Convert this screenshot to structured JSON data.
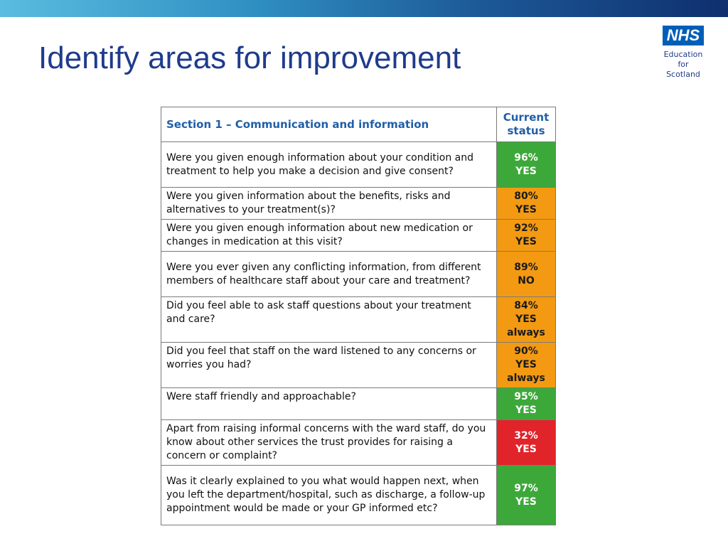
{
  "slide": {
    "title": "Identify areas for improvement"
  },
  "logo": {
    "brand": "NHS",
    "line1": "Education",
    "line2": "for",
    "line3": "Scotland"
  },
  "colors": {
    "green": "#3da83a",
    "amber": "#f39a12",
    "red": "#e0242a",
    "title_blue": "#1f3b8c",
    "header_blue": "#1f5fa8"
  },
  "table": {
    "section_header": "Section 1 – Communication and information",
    "status_header_line1": "Current",
    "status_header_line2": "status",
    "rows": [
      {
        "question": "Were you given enough information about your condition and treatment to help you make a decision and give consent?",
        "pct": "96%",
        "answer": "YES",
        "extra": "",
        "status": "green"
      },
      {
        "question": "Were you given information about the benefits, risks and alternatives to your treatment(s)?",
        "pct": "80%",
        "answer": "YES",
        "extra": "",
        "status": "amber"
      },
      {
        "question": "Were you given enough information about new medication or changes in medication at this visit?",
        "pct": "92%",
        "answer": "YES",
        "extra": "",
        "status": "amber"
      },
      {
        "question": "Were you ever given any conflicting information, from different members of healthcare staff about your care and treatment?",
        "pct": "89%",
        "answer": "NO",
        "extra": "",
        "status": "amber"
      },
      {
        "question": "Did you feel able to ask staff questions about your treatment and care?",
        "pct": "84%",
        "answer": "YES",
        "extra": "always",
        "status": "amber"
      },
      {
        "question": "Did you feel that staff on the ward listened to any concerns or worries you had?",
        "pct": "90%",
        "answer": "YES",
        "extra": "always",
        "status": "amber"
      },
      {
        "question": "Were staff friendly and approachable?",
        "pct": "95%",
        "answer": "YES",
        "extra": "",
        "status": "green"
      },
      {
        "question": "Apart from raising informal concerns with the ward staff, do you know about other services the trust provides for raising a concern or complaint?",
        "pct": "32%",
        "answer": "YES",
        "extra": "",
        "status": "red"
      },
      {
        "question": "Was it clearly explained to you what would happen next, when you left the department/hospital, such as discharge, a follow-up appointment would be made or your GP informed etc?",
        "pct": "97%",
        "answer": "YES",
        "extra": "",
        "status": "green"
      }
    ]
  }
}
